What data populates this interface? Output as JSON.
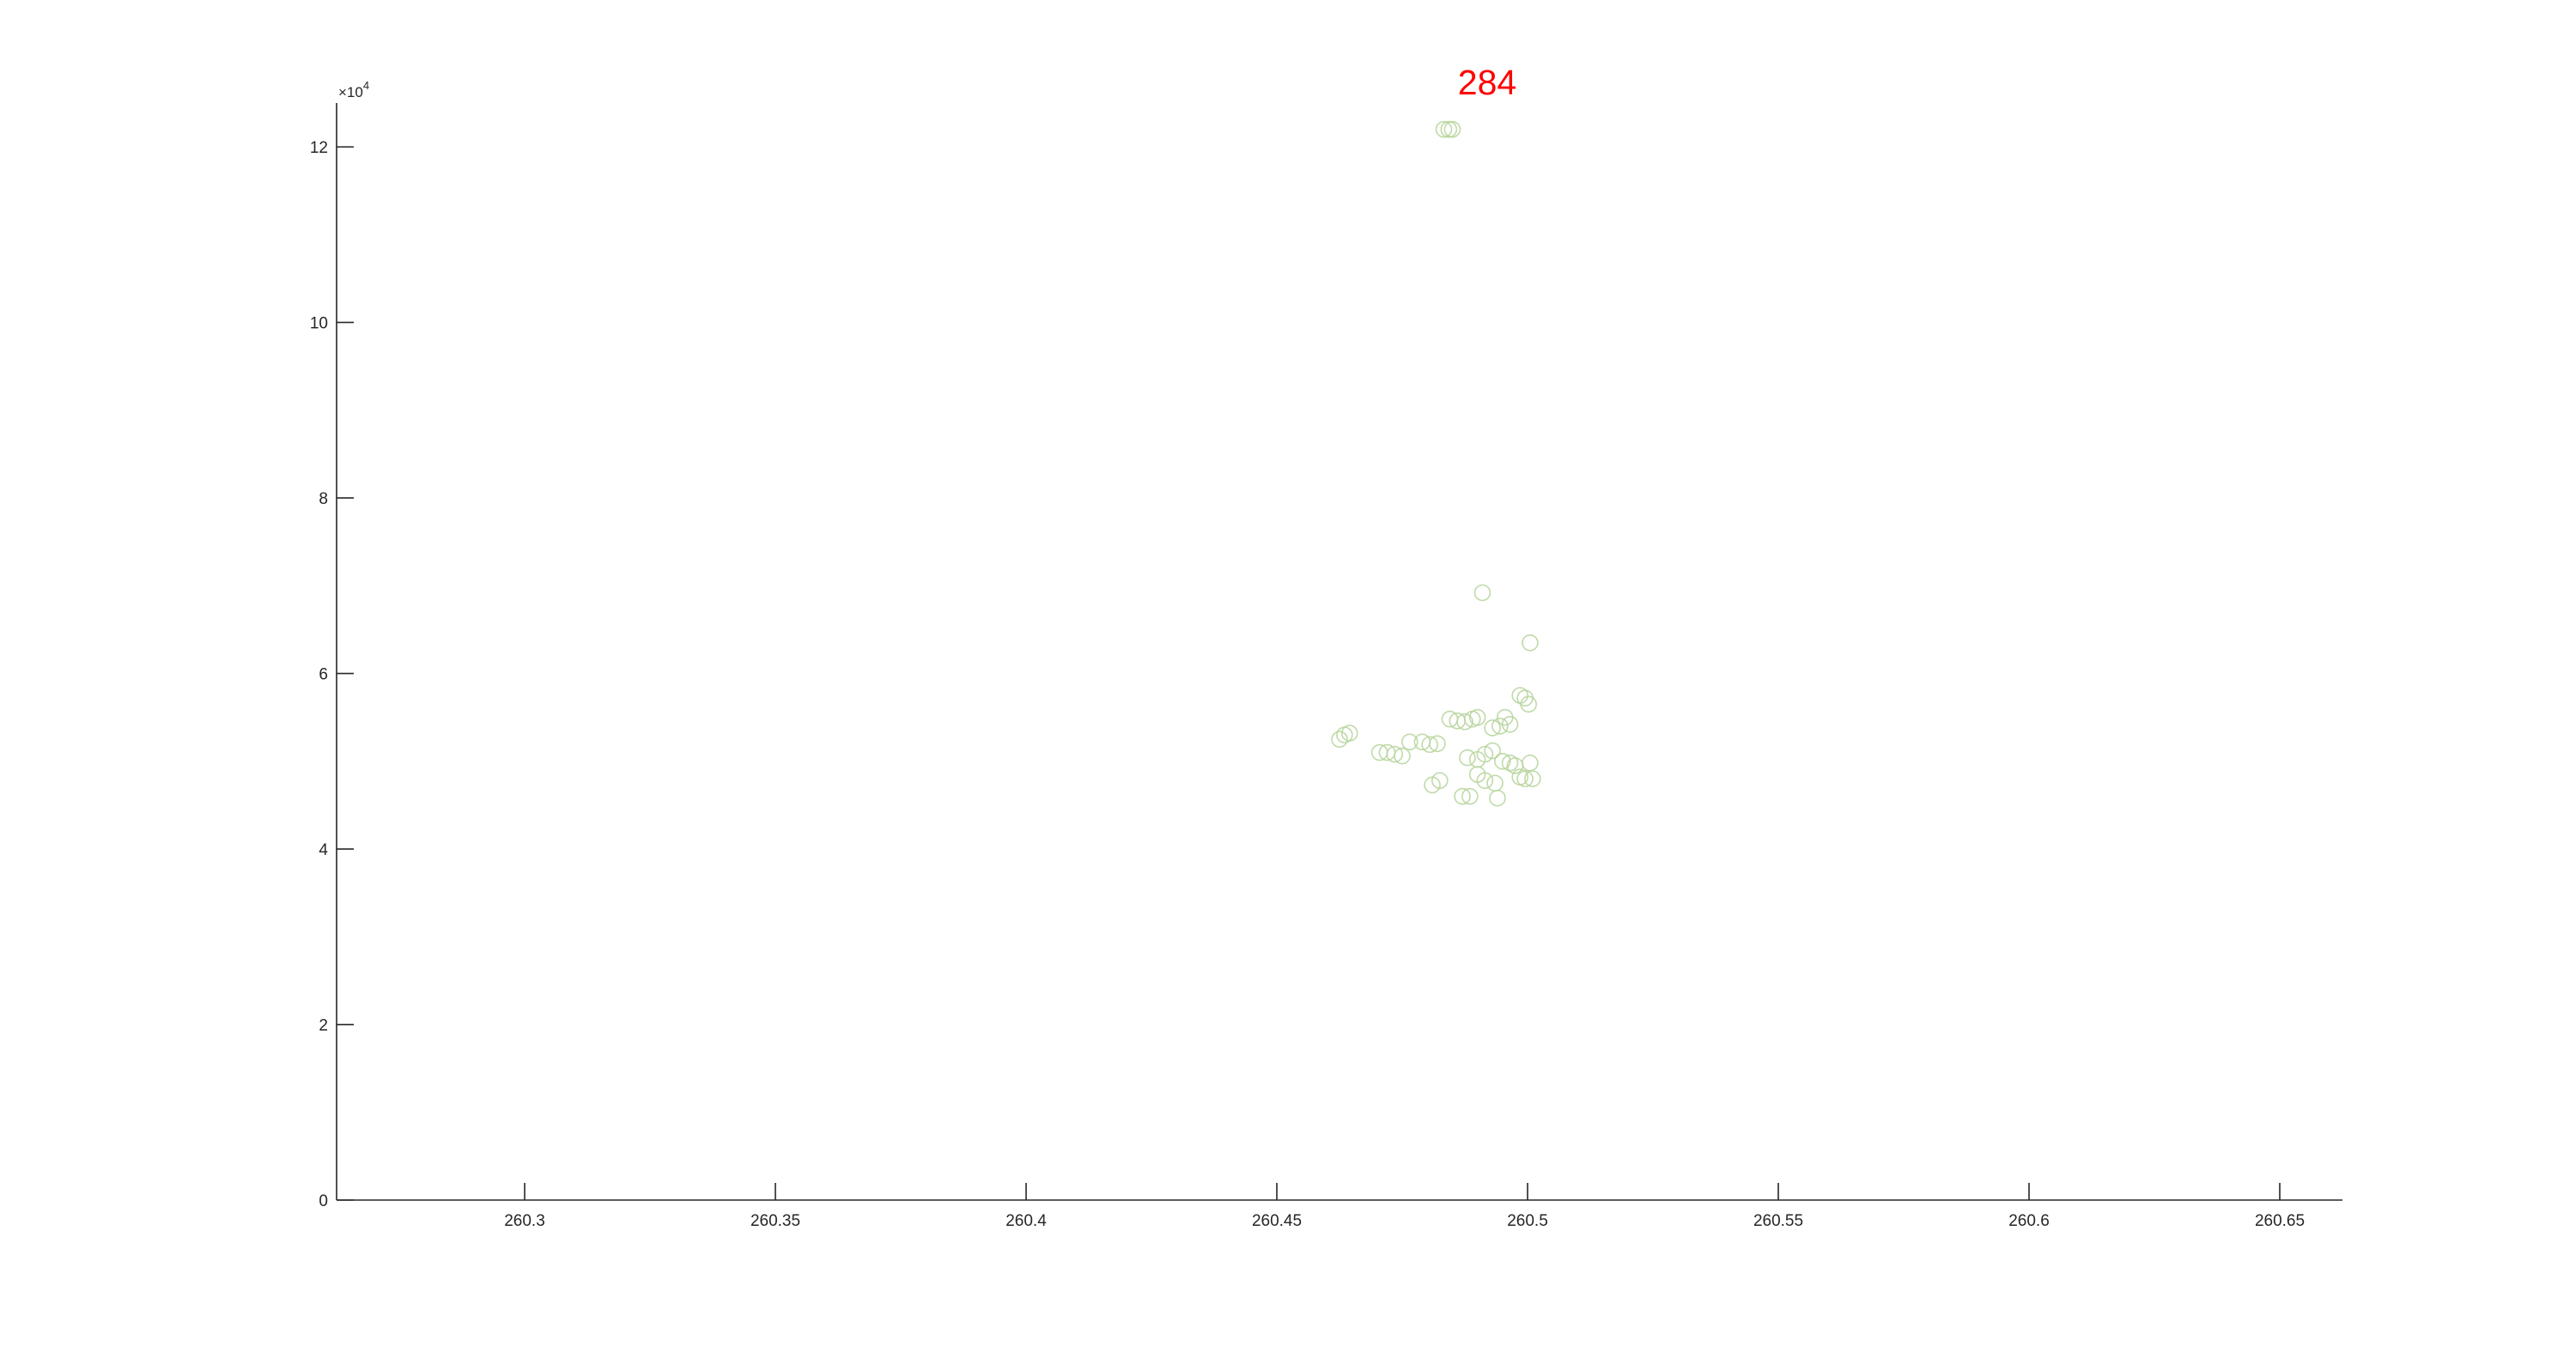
{
  "chart_data": {
    "type": "scatter",
    "title": "284",
    "xlabel": "",
    "ylabel": "",
    "y_exponent_label": "×10",
    "y_exponent_power": "4",
    "xlim": [
      260.2625,
      260.6625
    ],
    "ylim": [
      0,
      125000
    ],
    "grid": false,
    "colors": {
      "title": "#ff0000",
      "marker": "#b5d49a",
      "axis": "#262626"
    },
    "x_ticks": [
      {
        "value": 260.3,
        "label": "260.3"
      },
      {
        "value": 260.35,
        "label": "260.35"
      },
      {
        "value": 260.4,
        "label": "260.4"
      },
      {
        "value": 260.45,
        "label": "260.45"
      },
      {
        "value": 260.5,
        "label": "260.5"
      },
      {
        "value": 260.55,
        "label": "260.55"
      },
      {
        "value": 260.6,
        "label": "260.6"
      },
      {
        "value": 260.65,
        "label": "260.65"
      }
    ],
    "y_ticks": [
      {
        "value": 0,
        "label": "0"
      },
      {
        "value": 20000,
        "label": "2"
      },
      {
        "value": 40000,
        "label": "4"
      },
      {
        "value": 60000,
        "label": "6"
      },
      {
        "value": 80000,
        "label": "8"
      },
      {
        "value": 100000,
        "label": "10"
      },
      {
        "value": 120000,
        "label": "12"
      }
    ],
    "series": [
      {
        "marker": "circle",
        "x": [
          260.4833,
          260.4843,
          260.485,
          260.491,
          260.5005,
          260.4985,
          260.4995,
          260.5002,
          260.4955,
          260.4965,
          260.4845,
          260.486,
          260.4875,
          260.489,
          260.49,
          260.493,
          260.4945,
          260.4625,
          260.4635,
          260.4645,
          260.4765,
          260.479,
          260.4805,
          260.482,
          260.4705,
          260.472,
          260.4735,
          260.475,
          260.488,
          260.49,
          260.4915,
          260.493,
          260.495,
          260.4965,
          260.4975,
          260.5005,
          260.4985,
          260.4995,
          260.501,
          260.49,
          260.4915,
          260.4935,
          260.481,
          260.4825,
          260.487,
          260.4885,
          260.494
        ],
        "y": [
          122000,
          122000,
          122000,
          69200,
          63500,
          57500,
          57200,
          56500,
          55000,
          54200,
          54800,
          54600,
          54500,
          54800,
          55000,
          53800,
          54000,
          52500,
          53000,
          53200,
          52200,
          52200,
          51900,
          52000,
          51000,
          51000,
          50800,
          50600,
          50400,
          50200,
          50800,
          51200,
          50000,
          49800,
          49500,
          49800,
          48200,
          48000,
          48000,
          48500,
          47800,
          47500,
          47300,
          47800,
          46000,
          46000,
          45800
        ]
      }
    ]
  }
}
